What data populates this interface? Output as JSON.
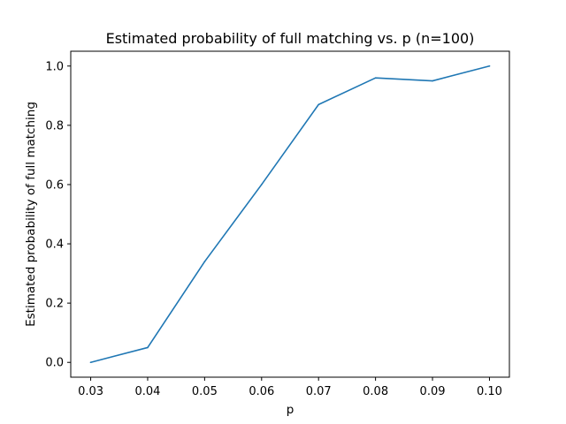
{
  "chart_data": {
    "type": "line",
    "title": "Estimated probability of full matching vs. p (n=100)",
    "xlabel": "p",
    "ylabel": "Estimated probability of full matching",
    "x": [
      0.03,
      0.04,
      0.05,
      0.06,
      0.07,
      0.08,
      0.09,
      0.1
    ],
    "series": [
      {
        "values": [
          0.0,
          0.05,
          0.34,
          0.6,
          0.87,
          0.96,
          0.95,
          1.0
        ]
      }
    ],
    "xlim": [
      0.0265,
      0.1035
    ],
    "ylim": [
      -0.05,
      1.05
    ],
    "xticks": [
      0.03,
      0.04,
      0.05,
      0.06,
      0.07,
      0.08,
      0.09,
      0.1
    ],
    "xtick_labels": [
      "0.03",
      "0.04",
      "0.05",
      "0.06",
      "0.07",
      "0.08",
      "0.09",
      "0.10"
    ],
    "yticks": [
      0.0,
      0.2,
      0.4,
      0.6,
      0.8,
      1.0
    ],
    "ytick_labels": [
      "0.0",
      "0.2",
      "0.4",
      "0.6",
      "0.8",
      "1.0"
    ],
    "line_color": "#1f77b4",
    "grid": false
  }
}
